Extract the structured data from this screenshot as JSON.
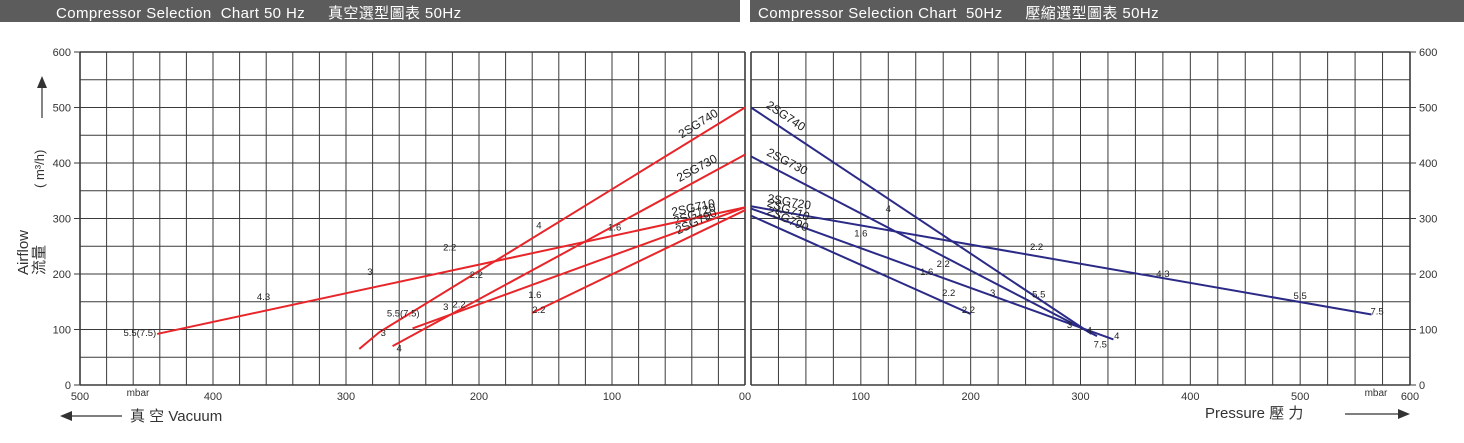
{
  "header": {
    "left_title": "Compressor Selection  Chart 50 Hz     真空選型圖表 50Hz",
    "right_title": "Compressor Selection Chart  50Hz     壓縮選型圖表 50Hz"
  },
  "axes": {
    "y_label_en": "Airflow",
    "y_label_zh": "流量",
    "y_unit": "( m³/h)",
    "y_ticks": [
      "0",
      "100",
      "200",
      "300",
      "400",
      "500",
      "600"
    ],
    "left_x_ticks": [
      "500",
      "400",
      "300",
      "200",
      "100",
      "00"
    ],
    "right_x_ticks": [
      "100",
      "200",
      "300",
      "400",
      "500",
      "600"
    ],
    "left_unit": "mbar",
    "right_unit": "mbar",
    "left_xlabel": "真 空  Vacuum",
    "right_xlabel": "Pressure  壓  力"
  },
  "colors": {
    "vacuum": "#e8262a",
    "pressure": "#2b2a86",
    "grid": "#3a3a3a",
    "header_bg": "#5c5c5c"
  },
  "chart_data": [
    {
      "type": "line",
      "title": "Compressor Selection Chart 50 Hz 真空選型圖表 50Hz",
      "xlabel": "真 空 Vacuum",
      "ylabel": "Airflow 流量 ( m³/h)",
      "x_unit": "mbar",
      "xlim": [
        500,
        0
      ],
      "ylim": [
        0,
        600
      ],
      "series": [
        {
          "name": "2SG740",
          "x": [
            0,
            275,
            290
          ],
          "y": [
            500,
            95,
            65
          ],
          "labels": [
            {
              "x": 155,
              "y": 282,
              "text": "4"
            }
          ]
        },
        {
          "name": "2SG730",
          "x": [
            0,
            265
          ],
          "y": [
            415,
            70
          ],
          "labels": [
            {
              "x": 202,
              "y": 193,
              "text": "2.2"
            },
            {
              "x": 225,
              "y": 135,
              "text": "3"
            },
            {
              "x": 260,
              "y": 60,
              "text": "4"
            }
          ]
        },
        {
          "name": "2SG720",
          "x": [
            0,
            250
          ],
          "y": [
            320,
            102
          ],
          "labels": [
            {
              "x": 158,
              "y": 157,
              "text": "1.6"
            },
            {
              "x": 215,
              "y": 140,
              "text": "2.2"
            },
            {
              "x": 272,
              "y": 88,
              "text": "3"
            },
            {
              "x": 257,
              "y": 123,
              "text": "5.5(7.5)"
            }
          ]
        },
        {
          "name": "2SG710",
          "x": [
            0,
            442
          ],
          "y": [
            320,
            92
          ],
          "labels": [
            {
              "x": 98,
              "y": 278,
              "text": "1.6"
            },
            {
              "x": 222,
              "y": 242,
              "text": "2.2"
            },
            {
              "x": 282,
              "y": 198,
              "text": "3"
            },
            {
              "x": 362,
              "y": 153,
              "text": "4.3"
            },
            {
              "x": 455,
              "y": 88,
              "text": "5.5(7.5)"
            }
          ]
        },
        {
          "name": "2SG790",
          "x": [
            0,
            160
          ],
          "y": [
            315,
            130
          ],
          "labels": [
            {
              "x": 155,
              "y": 130,
              "text": "2.2"
            }
          ]
        }
      ]
    },
    {
      "type": "line",
      "title": "Compressor Selection Chart 50Hz 壓縮選型圖表 50Hz",
      "xlabel": "Pressure 壓 力",
      "ylabel": "Airflow 流量 ( m³/h)",
      "x_unit": "mbar",
      "xlim": [
        0,
        600
      ],
      "ylim": [
        0,
        600
      ],
      "series": [
        {
          "name": "2SG740",
          "x": [
            0,
            310
          ],
          "y": [
            500,
            92
          ],
          "labels": [
            {
              "x": 125,
              "y": 312,
              "text": "4"
            },
            {
              "x": 262,
              "y": 158,
              "text": "5.5"
            }
          ]
        },
        {
          "name": "2SG730",
          "x": [
            0,
            315
          ],
          "y": [
            412,
            88
          ],
          "labels": [
            {
              "x": 318,
              "y": 68,
              "text": "7.5"
            }
          ]
        },
        {
          "name": "2SG720",
          "x": [
            0,
            565
          ],
          "y": [
            322,
            127
          ],
          "labels": [
            {
              "x": 100,
              "y": 268,
              "text": "1.6"
            },
            {
              "x": 260,
              "y": 243,
              "text": "2.2"
            },
            {
              "x": 375,
              "y": 195,
              "text": "4.3"
            },
            {
              "x": 500,
              "y": 155,
              "text": "5.5"
            },
            {
              "x": 570,
              "y": 127,
              "text": "7.5"
            }
          ]
        },
        {
          "name": "2SG710",
          "x": [
            0,
            330
          ],
          "y": [
            318,
            82
          ],
          "labels": [
            {
              "x": 160,
              "y": 198,
              "text": "1.6"
            },
            {
              "x": 175,
              "y": 213,
              "text": "2.2"
            },
            {
              "x": 220,
              "y": 160,
              "text": "3"
            },
            {
              "x": 308,
              "y": 93,
              "text": "4"
            },
            {
              "x": 333,
              "y": 83,
              "text": "4"
            }
          ]
        },
        {
          "name": "2SG790",
          "x": [
            0,
            200
          ],
          "y": [
            305,
            128
          ],
          "labels": [
            {
              "x": 180,
              "y": 160,
              "text": "2.2"
            },
            {
              "x": 198,
              "y": 130,
              "text": "2.2"
            },
            {
              "x": 290,
              "y": 103,
              "text": "3"
            }
          ]
        }
      ]
    }
  ]
}
